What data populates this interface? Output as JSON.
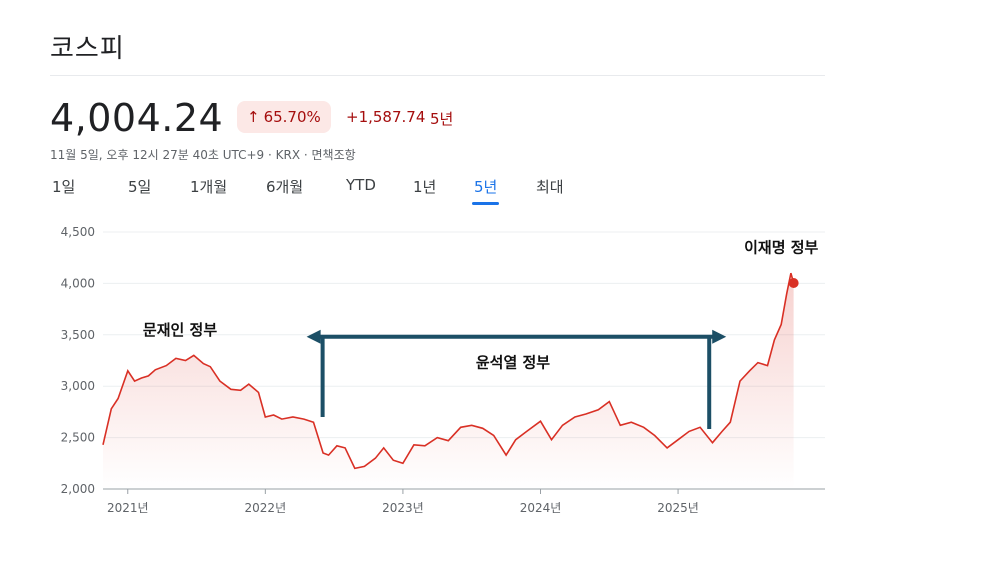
{
  "header": {
    "title": "코스피",
    "price": "4,004.24",
    "change_percent": "65.70%",
    "change_arrow": "↑",
    "change_abs": "+1,587.74",
    "period": "5년",
    "meta": "11월 5일, 오후 12시 27분 40초 UTC+9 · KRX · 면책조항"
  },
  "tabs": [
    {
      "label": "1일"
    },
    {
      "label": "5일"
    },
    {
      "label": "1개월"
    },
    {
      "label": "6개월"
    },
    {
      "label": "YTD"
    },
    {
      "label": "1년"
    },
    {
      "label": "5년",
      "active": true
    },
    {
      "label": "최대"
    }
  ],
  "colors": {
    "line": "#d93025",
    "accent": "#1a73e8",
    "annotation": "#1c4f66"
  },
  "chart_data": {
    "type": "line",
    "title": "",
    "xlabel": "",
    "ylabel": "",
    "ylim": [
      2000,
      4500
    ],
    "yticks": [
      "4,500",
      "4,000",
      "3,500",
      "3,000",
      "2,500",
      "2,000"
    ],
    "ytick_values": [
      4500,
      4000,
      3500,
      3000,
      2500,
      2000
    ],
    "xticks": [
      "2021년",
      "2022년",
      "2023년",
      "2024년",
      "2025년"
    ],
    "xtick_values": [
      2021.0,
      2022.0,
      2023.0,
      2024.0,
      2025.0
    ],
    "xlim": [
      2020.82,
      2025.85
    ],
    "grid": true,
    "series": [
      {
        "x": [
          2020.82,
          2020.88,
          2020.93,
          2021.0,
          2021.05,
          2021.1,
          2021.15,
          2021.2,
          2021.28,
          2021.35,
          2021.42,
          2021.48,
          2021.55,
          2021.6,
          2021.67,
          2021.75,
          2021.82,
          2021.88,
          2021.95,
          2022.0,
          2022.06,
          2022.12,
          2022.2,
          2022.28,
          2022.35,
          2022.42,
          2022.46,
          2022.52,
          2022.58,
          2022.65,
          2022.72,
          2022.8,
          2022.86,
          2022.93,
          2023.0,
          2023.08,
          2023.16,
          2023.25,
          2023.33,
          2023.42,
          2023.5,
          2023.58,
          2023.66,
          2023.75,
          2023.82,
          2023.9,
          2024.0,
          2024.08,
          2024.16,
          2024.25,
          2024.33,
          2024.42,
          2024.5,
          2024.58,
          2024.66,
          2024.75,
          2024.83,
          2024.92,
          2025.0,
          2025.08,
          2025.16,
          2025.25,
          2025.32,
          2025.38,
          2025.45,
          2025.52,
          2025.58,
          2025.65,
          2025.7,
          2025.75,
          2025.79,
          2025.82,
          2025.84
        ],
        "values": [
          2430,
          2780,
          2880,
          3150,
          3050,
          3080,
          3100,
          3160,
          3200,
          3270,
          3250,
          3300,
          3220,
          3190,
          3050,
          2970,
          2960,
          3020,
          2940,
          2700,
          2720,
          2680,
          2700,
          2680,
          2650,
          2350,
          2330,
          2420,
          2400,
          2200,
          2220,
          2300,
          2400,
          2280,
          2250,
          2430,
          2420,
          2500,
          2470,
          2600,
          2620,
          2590,
          2520,
          2330,
          2480,
          2560,
          2660,
          2480,
          2620,
          2700,
          2730,
          2770,
          2850,
          2620,
          2650,
          2600,
          2520,
          2400,
          2480,
          2560,
          2600,
          2450,
          2560,
          2650,
          3050,
          3150,
          3230,
          3200,
          3450,
          3600,
          3900,
          4100,
          4004
        ]
      }
    ],
    "annotations": [
      {
        "label": "문재인 정부",
        "x": 2021.38,
        "y": 3500
      },
      {
        "label": "윤석열 정부",
        "x": 2023.8,
        "y": 3180
      },
      {
        "label": "이재명 정부",
        "x": 2025.75,
        "y": 4300
      }
    ],
    "arrow_range": {
      "start": 2022.3,
      "end": 2025.35,
      "y": 3500,
      "drop_to": 2700
    }
  }
}
